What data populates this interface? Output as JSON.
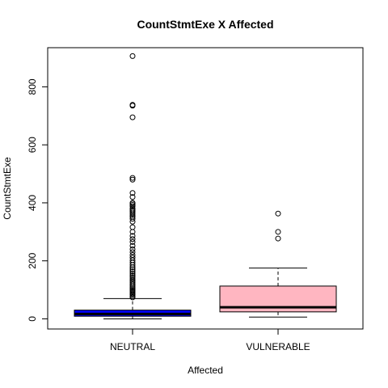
{
  "chart_data": {
    "type": "boxplot",
    "title": "CountStmtExe X Affected",
    "xlabel": "Affected",
    "ylabel": "CountStmtExe",
    "ylim": [
      -35,
      935
    ],
    "yticks": [
      0,
      200,
      400,
      600,
      800
    ],
    "categories": [
      "NEUTRAL",
      "VULNERABLE"
    ],
    "boxes": [
      {
        "category": "NEUTRAL",
        "color": "#0000ff",
        "whisker_low": 0,
        "q1": 9,
        "median": 17,
        "q3": 30,
        "whisker_high": 70,
        "outliers": [
          74,
          78,
          83,
          87,
          92,
          96,
          100,
          105,
          110,
          115,
          120,
          126,
          132,
          138,
          144,
          150,
          157,
          164,
          171,
          178,
          186,
          194,
          202,
          211,
          220,
          230,
          240,
          252,
          265,
          275,
          286,
          300,
          316,
          335,
          345,
          352,
          358,
          364,
          370,
          375,
          380,
          388,
          393,
          398,
          400,
          420,
          434,
          480,
          486,
          695,
          735,
          738,
          906
        ]
      },
      {
        "category": "VULNERABLE",
        "color": "#ffb6c1",
        "whisker_low": 6,
        "q1": 24,
        "median": 40,
        "q3": 113,
        "whisker_high": 175,
        "outliers": [
          277,
          300,
          363
        ]
      }
    ]
  }
}
